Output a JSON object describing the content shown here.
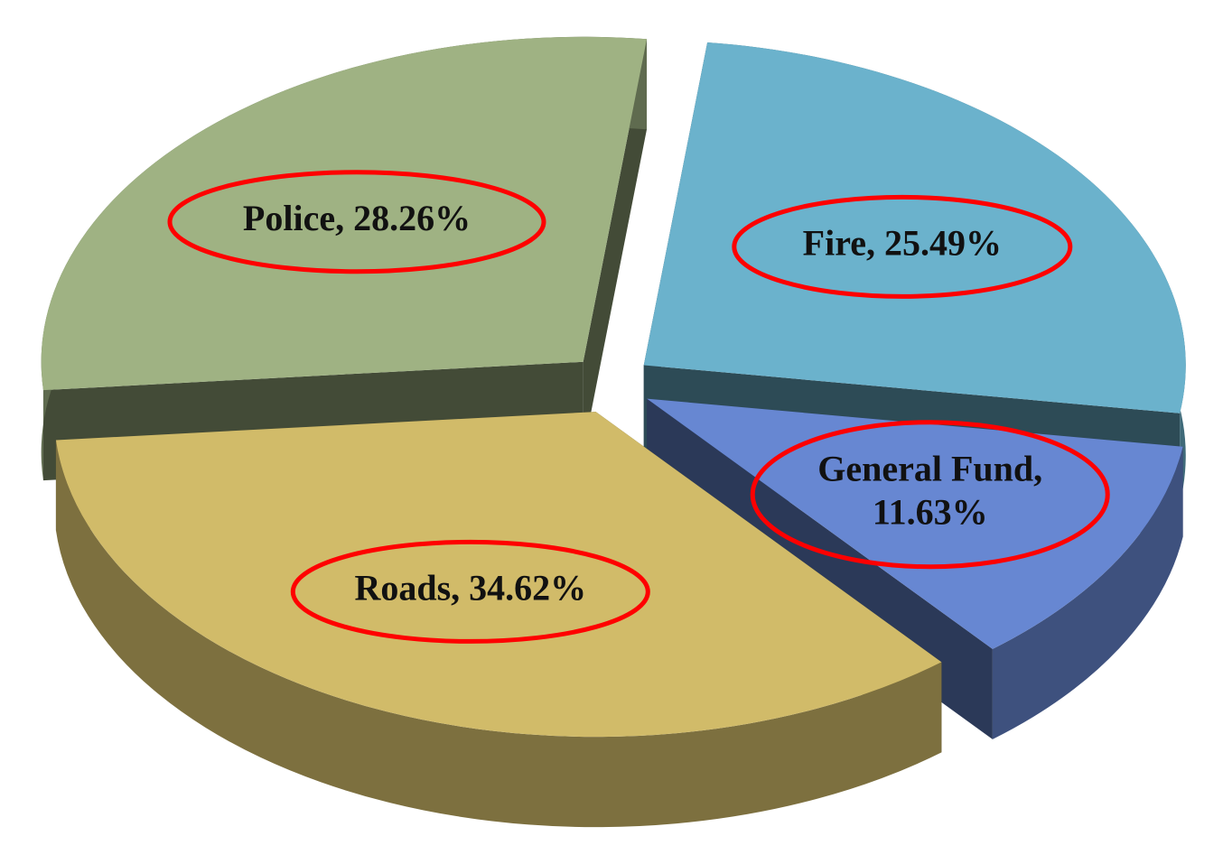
{
  "chart_data": {
    "type": "pie",
    "labels": [
      "Police, 28.26%",
      "Fire, 25.49%",
      "General Fund, 11.63%",
      "Roads, 34.62%"
    ],
    "values": [
      28.26,
      25.49,
      11.63,
      34.62
    ],
    "colors": [
      "#9fb283",
      "#6bb2cc",
      "#6787d2",
      "#d1bb69"
    ]
  }
}
